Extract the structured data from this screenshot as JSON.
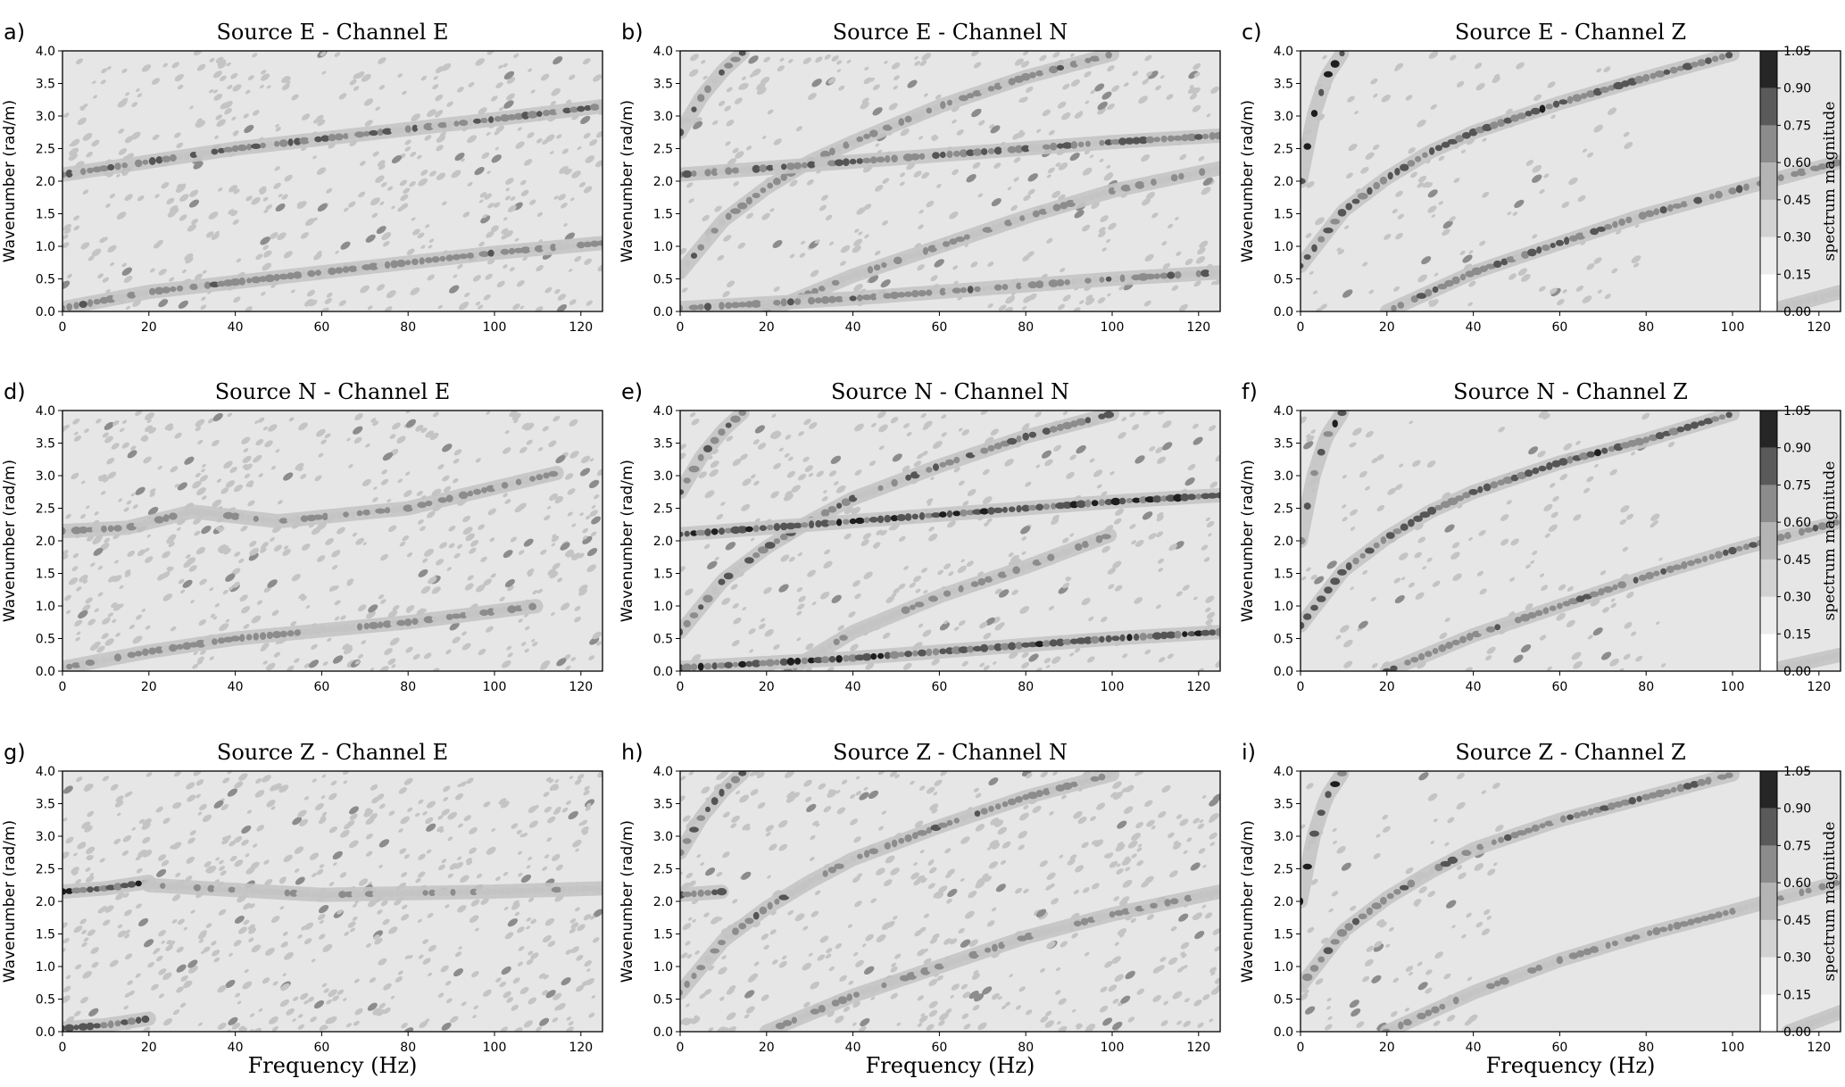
{
  "figure": {
    "xlabel": "Frequency (Hz)",
    "ylabel": "Wavenumber (rad/m)",
    "colorbar_label": "spectrum magnitude",
    "colorbar_ticks": [
      "1.05",
      "0.90",
      "0.75",
      "0.60",
      "0.45",
      "0.30",
      "0.15",
      "0.00"
    ],
    "colorbar_levels": [
      0.0,
      0.15,
      0.3,
      0.45,
      0.6,
      0.75,
      0.9,
      1.05
    ],
    "xticks": [
      0,
      20,
      40,
      60,
      80,
      100,
      120
    ],
    "yticks": [
      "0.0",
      "0.5",
      "1.0",
      "1.5",
      "2.0",
      "2.5",
      "3.0",
      "3.5",
      "4.0"
    ],
    "colors": {
      "background_fill": "#e6e6e6",
      "level_1": "#c4c4c4",
      "level_2": "#8c8c8c",
      "level_3": "#555555",
      "level_4": "#1e1e1e"
    }
  },
  "chart_data": [
    {
      "type": "heatmap",
      "letter": "a)",
      "title": "Source E - Channel E",
      "xlim": [
        0,
        125
      ],
      "ylim": [
        0,
        4
      ],
      "noise": 0.55,
      "vcut": null,
      "series": [
        {
          "name": "",
          "points": [
            [
              0,
              2.1
            ],
            [
              20,
              2.3
            ],
            [
              40,
              2.5
            ],
            [
              60,
              2.65
            ],
            [
              80,
              2.8
            ],
            [
              100,
              2.95
            ],
            [
              125,
              3.15
            ]
          ],
          "strength": 0.55
        },
        {
          "name": "",
          "points": [
            [
              0,
              0.05
            ],
            [
              20,
              0.3
            ],
            [
              40,
              0.45
            ],
            [
              60,
              0.6
            ],
            [
              80,
              0.75
            ],
            [
              100,
              0.9
            ],
            [
              125,
              1.05
            ]
          ],
          "strength": 0.5
        }
      ]
    },
    {
      "type": "heatmap",
      "letter": "b)",
      "title": "Source E - Channel N",
      "xlim": [
        0,
        125
      ],
      "ylim": [
        0,
        4
      ],
      "noise": 0.4,
      "vcut": null,
      "series": [
        {
          "name": "",
          "points": [
            [
              0,
              2.75
            ],
            [
              5,
              3.3
            ],
            [
              10,
              3.7
            ],
            [
              15,
              4.0
            ]
          ],
          "strength": 0.6
        },
        {
          "name": "",
          "points": [
            [
              0,
              0.6
            ],
            [
              10,
              1.4
            ],
            [
              20,
              1.9
            ],
            [
              30,
              2.3
            ],
            [
              40,
              2.6
            ],
            [
              60,
              3.15
            ],
            [
              80,
              3.6
            ],
            [
              100,
              3.95
            ]
          ],
          "strength": 0.5
        },
        {
          "name": "",
          "points": [
            [
              0,
              2.1
            ],
            [
              20,
              2.2
            ],
            [
              40,
              2.3
            ],
            [
              60,
              2.4
            ],
            [
              80,
              2.5
            ],
            [
              100,
              2.6
            ],
            [
              125,
              2.7
            ]
          ],
          "strength": 0.55
        },
        {
          "name": "",
          "points": [
            [
              20,
              0.0
            ],
            [
              40,
              0.55
            ],
            [
              60,
              1.0
            ],
            [
              80,
              1.45
            ],
            [
              100,
              1.85
            ],
            [
              125,
              2.2
            ]
          ],
          "strength": 0.4
        },
        {
          "name": "",
          "points": [
            [
              0,
              0.05
            ],
            [
              40,
              0.2
            ],
            [
              60,
              0.3
            ],
            [
              80,
              0.4
            ],
            [
              100,
              0.5
            ],
            [
              125,
              0.6
            ]
          ],
          "strength": 0.5
        }
      ]
    },
    {
      "type": "heatmap",
      "letter": "c)",
      "title": "Source E - Channel Z",
      "xlim": [
        0,
        125
      ],
      "ylim": [
        0,
        4
      ],
      "noise": 0.25,
      "vcut": 78,
      "series": [
        {
          "name": "",
          "points": [
            [
              0,
              2.0
            ],
            [
              3,
              3.0
            ],
            [
              6,
              3.6
            ],
            [
              10,
              4.0
            ]
          ],
          "strength": 0.85
        },
        {
          "name": "",
          "points": [
            [
              0,
              0.7
            ],
            [
              10,
              1.55
            ],
            [
              20,
              2.05
            ],
            [
              30,
              2.45
            ],
            [
              40,
              2.75
            ],
            [
              60,
              3.2
            ],
            [
              78,
              3.55
            ],
            [
              100,
              3.95
            ]
          ],
          "strength": 0.7
        },
        {
          "name": "",
          "points": [
            [
              20,
              0.0
            ],
            [
              40,
              0.6
            ],
            [
              60,
              1.05
            ],
            [
              78,
              1.45
            ],
            [
              100,
              1.85
            ],
            [
              125,
              2.3
            ]
          ],
          "strength": 0.55
        },
        {
          "name": "",
          "points": [
            [
              108,
              0.0
            ],
            [
              125,
              0.3
            ]
          ],
          "strength": 0.3
        }
      ]
    },
    {
      "type": "heatmap",
      "letter": "d)",
      "title": "Source N - Channel E",
      "xlim": [
        0,
        125
      ],
      "ylim": [
        0,
        4
      ],
      "noise": 0.6,
      "vcut": null,
      "series": [
        {
          "name": "",
          "points": [
            [
              0,
              2.15
            ],
            [
              15,
              2.2
            ],
            [
              30,
              2.45
            ],
            [
              50,
              2.3
            ],
            [
              80,
              2.5
            ],
            [
              115,
              3.05
            ]
          ],
          "strength": 0.45
        },
        {
          "name": "",
          "points": [
            [
              0,
              0.05
            ],
            [
              20,
              0.3
            ],
            [
              40,
              0.5
            ],
            [
              80,
              0.75
            ],
            [
              110,
              1.0
            ]
          ],
          "strength": 0.45
        }
      ]
    },
    {
      "type": "heatmap",
      "letter": "e)",
      "title": "Source N - Channel N",
      "xlim": [
        0,
        125
      ],
      "ylim": [
        0,
        4
      ],
      "noise": 0.4,
      "vcut": null,
      "series": [
        {
          "name": "",
          "points": [
            [
              0,
              2.75
            ],
            [
              5,
              3.3
            ],
            [
              10,
              3.7
            ],
            [
              15,
              4.0
            ]
          ],
          "strength": 0.65
        },
        {
          "name": "",
          "points": [
            [
              0,
              0.6
            ],
            [
              10,
              1.4
            ],
            [
              20,
              1.9
            ],
            [
              30,
              2.3
            ],
            [
              40,
              2.65
            ],
            [
              60,
              3.15
            ],
            [
              80,
              3.6
            ],
            [
              100,
              3.95
            ]
          ],
          "strength": 0.55
        },
        {
          "name": "",
          "points": [
            [
              0,
              2.1
            ],
            [
              20,
              2.2
            ],
            [
              40,
              2.3
            ],
            [
              60,
              2.4
            ],
            [
              80,
              2.5
            ],
            [
              100,
              2.6
            ],
            [
              125,
              2.7
            ]
          ],
          "strength": 0.8
        },
        {
          "name": "",
          "points": [
            [
              25,
              0.0
            ],
            [
              40,
              0.6
            ],
            [
              60,
              1.15
            ],
            [
              80,
              1.6
            ],
            [
              100,
              2.1
            ]
          ],
          "strength": 0.45
        },
        {
          "name": "",
          "points": [
            [
              0,
              0.05
            ],
            [
              40,
              0.2
            ],
            [
              60,
              0.3
            ],
            [
              80,
              0.4
            ],
            [
              100,
              0.5
            ],
            [
              125,
              0.6
            ]
          ],
          "strength": 0.75
        }
      ]
    },
    {
      "type": "heatmap",
      "letter": "f)",
      "title": "Source N - Channel Z",
      "xlim": [
        0,
        125
      ],
      "ylim": [
        0,
        4
      ],
      "noise": 0.25,
      "vcut": 88,
      "series": [
        {
          "name": "",
          "points": [
            [
              0,
              2.0
            ],
            [
              3,
              3.0
            ],
            [
              6,
              3.6
            ],
            [
              10,
              4.0
            ]
          ],
          "strength": 0.8
        },
        {
          "name": "",
          "points": [
            [
              0,
              0.7
            ],
            [
              10,
              1.55
            ],
            [
              20,
              2.05
            ],
            [
              30,
              2.45
            ],
            [
              40,
              2.75
            ],
            [
              60,
              3.2
            ],
            [
              80,
              3.55
            ],
            [
              100,
              3.95
            ]
          ],
          "strength": 0.7
        },
        {
          "name": "",
          "points": [
            [
              20,
              0.0
            ],
            [
              40,
              0.55
            ],
            [
              60,
              1.0
            ],
            [
              80,
              1.45
            ],
            [
              100,
              1.85
            ],
            [
              125,
              2.3
            ]
          ],
          "strength": 0.55
        },
        {
          "name": "",
          "points": [
            [
              108,
              0.0
            ],
            [
              125,
              0.25
            ]
          ],
          "strength": 0.3
        }
      ]
    },
    {
      "type": "heatmap",
      "letter": "g)",
      "title": "Source Z - Channel E",
      "xlim": [
        0,
        125
      ],
      "ylim": [
        0,
        4
      ],
      "noise": 0.65,
      "vcut": null,
      "series": [
        {
          "name": "",
          "points": [
            [
              0,
              2.15
            ],
            [
              10,
              2.2
            ],
            [
              20,
              2.3
            ]
          ],
          "strength": 0.8
        },
        {
          "name": "",
          "points": [
            [
              20,
              2.25
            ],
            [
              60,
              2.1
            ],
            [
              100,
              2.15
            ],
            [
              125,
              2.2
            ]
          ],
          "strength": 0.35
        },
        {
          "name": "",
          "points": [
            [
              0,
              0.05
            ],
            [
              10,
              0.1
            ],
            [
              20,
              0.2
            ]
          ],
          "strength": 0.7
        }
      ]
    },
    {
      "type": "heatmap",
      "letter": "h)",
      "title": "Source Z - Channel N",
      "xlim": [
        0,
        125
      ],
      "ylim": [
        0,
        4
      ],
      "noise": 0.55,
      "vcut": null,
      "series": [
        {
          "name": "",
          "points": [
            [
              0,
              2.75
            ],
            [
              5,
              3.3
            ],
            [
              10,
              3.7
            ],
            [
              15,
              4.0
            ]
          ],
          "strength": 0.6
        },
        {
          "name": "",
          "points": [
            [
              0,
              0.6
            ],
            [
              10,
              1.4
            ],
            [
              20,
              1.9
            ],
            [
              30,
              2.3
            ],
            [
              40,
              2.65
            ],
            [
              60,
              3.15
            ],
            [
              80,
              3.6
            ],
            [
              100,
              3.95
            ]
          ],
          "strength": 0.5
        },
        {
          "name": "",
          "points": [
            [
              0,
              2.1
            ],
            [
              10,
              2.15
            ]
          ],
          "strength": 0.55
        },
        {
          "name": "",
          "points": [
            [
              20,
              0.0
            ],
            [
              40,
              0.55
            ],
            [
              60,
              1.0
            ],
            [
              80,
              1.45
            ],
            [
              100,
              1.8
            ],
            [
              125,
              2.15
            ]
          ],
          "strength": 0.4
        }
      ]
    },
    {
      "type": "heatmap",
      "letter": "i)",
      "title": "Source Z - Channel Z",
      "xlim": [
        0,
        125
      ],
      "ylim": [
        0,
        4
      ],
      "noise": 0.25,
      "vcut": 48,
      "series": [
        {
          "name": "",
          "points": [
            [
              0,
              2.0
            ],
            [
              3,
              3.0
            ],
            [
              6,
              3.6
            ],
            [
              10,
              4.0
            ]
          ],
          "strength": 0.85
        },
        {
          "name": "",
          "points": [
            [
              0,
              0.7
            ],
            [
              10,
              1.55
            ],
            [
              20,
              2.05
            ],
            [
              30,
              2.45
            ],
            [
              40,
              2.8
            ],
            [
              60,
              3.25
            ],
            [
              80,
              3.6
            ],
            [
              100,
              3.95
            ]
          ],
          "strength": 0.55
        },
        {
          "name": "",
          "points": [
            [
              20,
              0.0
            ],
            [
              40,
              0.6
            ],
            [
              60,
              1.1
            ],
            [
              80,
              1.5
            ],
            [
              100,
              1.85
            ],
            [
              125,
              2.3
            ]
          ],
          "strength": 0.45
        },
        {
          "name": "",
          "points": [
            [
              113,
              0.0
            ],
            [
              125,
              0.3
            ]
          ],
          "strength": 0.3
        }
      ]
    }
  ]
}
